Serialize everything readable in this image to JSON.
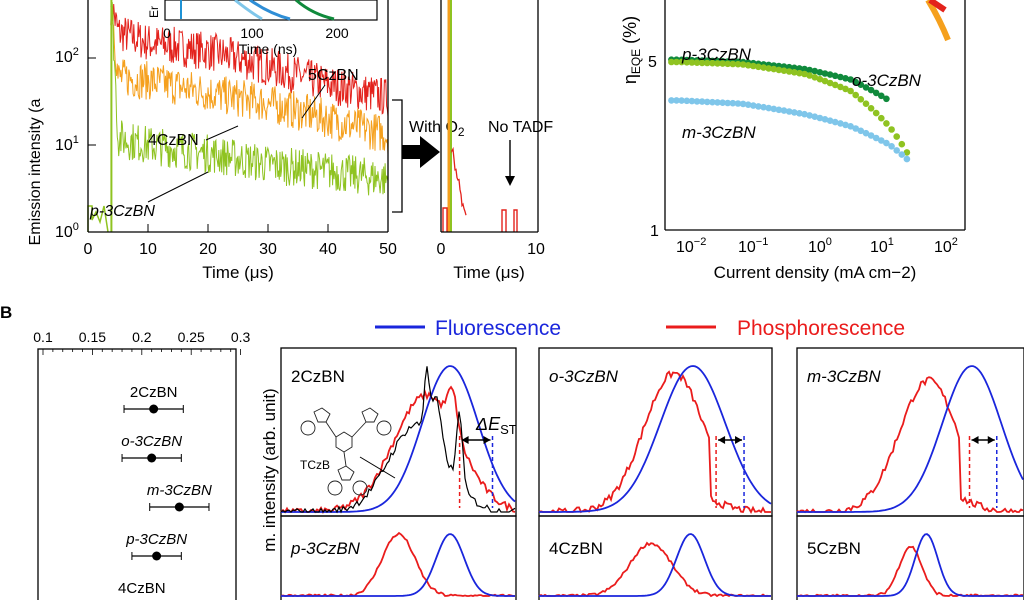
{
  "colors": {
    "red": "#e3221c",
    "orange": "#f5a01d",
    "lime": "#8fc321",
    "green": "#108a3c",
    "light_blue": "#7fc6ea",
    "blue": "#1a26dc",
    "phos_red": "#ea1c1c",
    "mid_blue": "#2f8ed6",
    "black": "#000000"
  },
  "panel_a": {
    "decay": {
      "ylabel": "Emission intensity (a",
      "xlabel": "Time (μs)",
      "xticks": [
        "0",
        "10",
        "20",
        "30",
        "40",
        "50"
      ],
      "yticks": [
        "10",
        "10",
        "10"
      ],
      "ytick_exps": [
        "2",
        "1",
        "0"
      ],
      "labels": {
        "s1": "5CzBN",
        "s2": "4CzBN",
        "s3": "p-3CzBN"
      }
    },
    "inset": {
      "ylabel": "Er",
      "xlabel": "Time (ns)",
      "xticks": [
        "0",
        "100",
        "200"
      ]
    },
    "o2": {
      "xlabel": "Time (μs)",
      "xticks": [
        "0",
        "10"
      ],
      "with_o2_prefix": "With O",
      "with_o2_sub": "2",
      "no_tadf": "No TADF"
    },
    "eqe": {
      "ylabel_main": "η",
      "ylabel_sub": "EQE",
      "ylabel_tail": " (%)",
      "yticks": [
        "5",
        "1"
      ],
      "xlabel": "Current density (mA cm−2)",
      "xticks": [
        "10",
        "10",
        "10",
        "10",
        "10"
      ],
      "xtick_exps": [
        "−2",
        "−1",
        "0",
        "1",
        "2"
      ],
      "labels": {
        "p": "p-3CzBN",
        "o": "o-3CzBN",
        "m": "m-3CzBN"
      }
    }
  },
  "panel_b": {
    "letter": "B",
    "legend": {
      "fluor": "Fluorescence",
      "phos": "Phosphorescence"
    },
    "scale_ticks": [
      "0.1",
      "0.15",
      "0.2",
      "0.25",
      "0.3"
    ],
    "dest_points": [
      {
        "name": "2CzBN",
        "value": 0.212,
        "err": 0.03
      },
      {
        "name": "o-3CzBN",
        "value": 0.21,
        "err": 0.03
      },
      {
        "name": "m-3CzBN",
        "value": 0.238,
        "err": 0.03
      },
      {
        "name": "p-3CzBN",
        "value": 0.215,
        "err": 0.025
      },
      {
        "name": "4CzBN",
        "value": null,
        "err": null
      }
    ],
    "spectra_ylabel": "m. intensity (arb. unit)",
    "spectra_titles": [
      "2CzBN",
      "o-3CzBN",
      "m-3CzBN",
      "p-3CzBN",
      "4CzBN",
      "5CzBN"
    ],
    "delta_label": "ΔE",
    "delta_sub": "ST",
    "tczb_label": "TCzB"
  },
  "chart_data": [
    {
      "type": "line",
      "title": "",
      "xlabel": "Time (μs)",
      "ylabel": "Emission intensity (a",
      "xlim": [
        0,
        50
      ],
      "ylim": [
        1,
        1000
      ],
      "yscale": "log",
      "series": [
        {
          "name": "5CzBN",
          "x": [
            4,
            5,
            10,
            20,
            30,
            40,
            50
          ],
          "y": [
            400,
            200,
            150,
            120,
            80,
            50,
            35
          ]
        },
        {
          "name": "4CzBN",
          "x": [
            4,
            5,
            10,
            20,
            30,
            40,
            50
          ],
          "y": [
            400,
            60,
            55,
            40,
            30,
            20,
            13
          ]
        },
        {
          "name": "p-3CzBN",
          "x": [
            4,
            5,
            10,
            20,
            30,
            40,
            50
          ],
          "y": [
            400,
            12,
            10,
            8,
            6,
            5,
            4
          ]
        }
      ]
    },
    {
      "type": "scatter",
      "xlabel": "Current density (mA cm−2)",
      "ylabel": "ηEQE (%)",
      "xscale": "log",
      "yscale": "log",
      "xlim": [
        0.006,
        150
      ],
      "ylim": [
        1,
        8
      ],
      "series": [
        {
          "name": "o-3CzBN",
          "x": [
            0.01,
            0.1,
            1,
            5,
            20
          ],
          "y": [
            4.8,
            4.7,
            4.4,
            4.0,
            3.3
          ]
        },
        {
          "name": "p-3CzBN",
          "x": [
            0.01,
            0.1,
            1,
            5,
            20,
            40
          ],
          "y": [
            4.7,
            4.6,
            4.2,
            3.6,
            2.6,
            2.0
          ]
        },
        {
          "name": "m-3CzBN",
          "x": [
            0.01,
            0.1,
            1,
            5,
            20,
            40
          ],
          "y": [
            3.3,
            3.2,
            2.9,
            2.6,
            2.2,
            1.9
          ]
        }
      ]
    },
    {
      "type": "scatter",
      "title": "",
      "xlim": [
        0.1,
        0.3
      ],
      "categories": [
        "2CzBN",
        "o-3CzBN",
        "m-3CzBN",
        "p-3CzBN",
        "4CzBN"
      ],
      "values": [
        0.212,
        0.21,
        0.238,
        0.215,
        null
      ]
    }
  ]
}
